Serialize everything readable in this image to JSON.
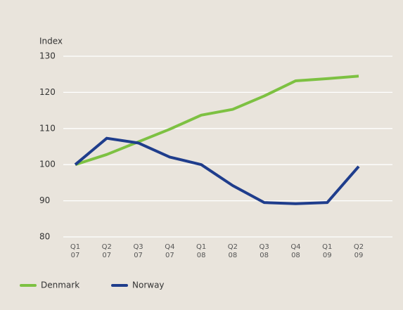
{
  "chart_data": {
    "type": "line",
    "y_axis_label": "Index",
    "categories": [
      "Q1 07",
      "Q2 07",
      "Q3 07",
      "Q4 07",
      "Q1 08",
      "Q2 08",
      "Q3 08",
      "Q4 08",
      "Q1 09",
      "Q2 09"
    ],
    "series": [
      {
        "name": "Denmark",
        "color": "#7dc142",
        "values": [
          100,
          102.8,
          106.3,
          109.8,
          113.7,
          115.3,
          119,
          123.2,
          123.8,
          124.5
        ]
      },
      {
        "name": "Norway",
        "color": "#1f3d8c",
        "values": [
          100,
          107.3,
          106,
          102.1,
          100,
          94.2,
          89.5,
          89.2,
          89.5,
          99.5
        ]
      }
    ],
    "ylim": [
      80,
      130
    ],
    "yticks": [
      80,
      90,
      100,
      110,
      120,
      130
    ],
    "grid": true,
    "legend": "bottom-left"
  }
}
